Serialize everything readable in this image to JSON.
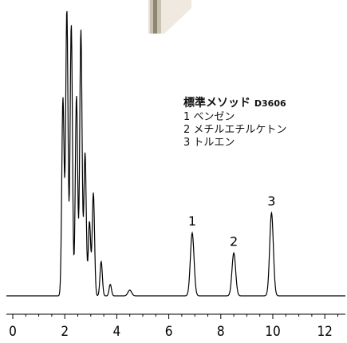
{
  "chart_data": {
    "type": "line",
    "title": "",
    "xlabel": "",
    "ylabel": "",
    "xlim": [
      0,
      12.6
    ],
    "x_ticks": [
      0,
      2,
      4,
      6,
      8,
      10,
      12
    ],
    "x_tick_labels": [
      "0",
      "2",
      "4",
      "6",
      "8",
      "10",
      "12"
    ],
    "minor_tick_step": 0.5,
    "grid": false,
    "series": [
      {
        "peaks": [
          {
            "x": 1.93,
            "height": 0.69
          },
          {
            "x": 2.08,
            "height": 1.0
          },
          {
            "x": 2.25,
            "height": 0.95
          },
          {
            "x": 2.45,
            "height": 0.7
          },
          {
            "x": 2.62,
            "height": 0.93
          },
          {
            "x": 2.78,
            "height": 0.5
          },
          {
            "x": 2.95,
            "height": 0.26
          },
          {
            "x": 3.1,
            "height": 0.36
          },
          {
            "x": 3.4,
            "height": 0.12
          },
          {
            "x": 3.75,
            "height": 0.04
          },
          {
            "x": 4.5,
            "height": 0.02
          },
          {
            "x": 6.9,
            "height": 0.22
          },
          {
            "x": 8.5,
            "height": 0.15
          },
          {
            "x": 9.95,
            "height": 0.29
          }
        ]
      }
    ],
    "peak_labels": [
      {
        "text": "1",
        "x": 6.9
      },
      {
        "text": "2",
        "x": 8.5
      },
      {
        "text": "3",
        "x": 9.95
      }
    ]
  },
  "legend": {
    "title": "標準メソッド",
    "code": "D3606",
    "items": [
      "1 ベンゼン",
      "2 メチルエチルケトン",
      "3 トルエン"
    ]
  },
  "style": {
    "line_color": "#000000",
    "photo_color": "#d9d2c4",
    "photo_shadow": "#b8ae9d"
  }
}
